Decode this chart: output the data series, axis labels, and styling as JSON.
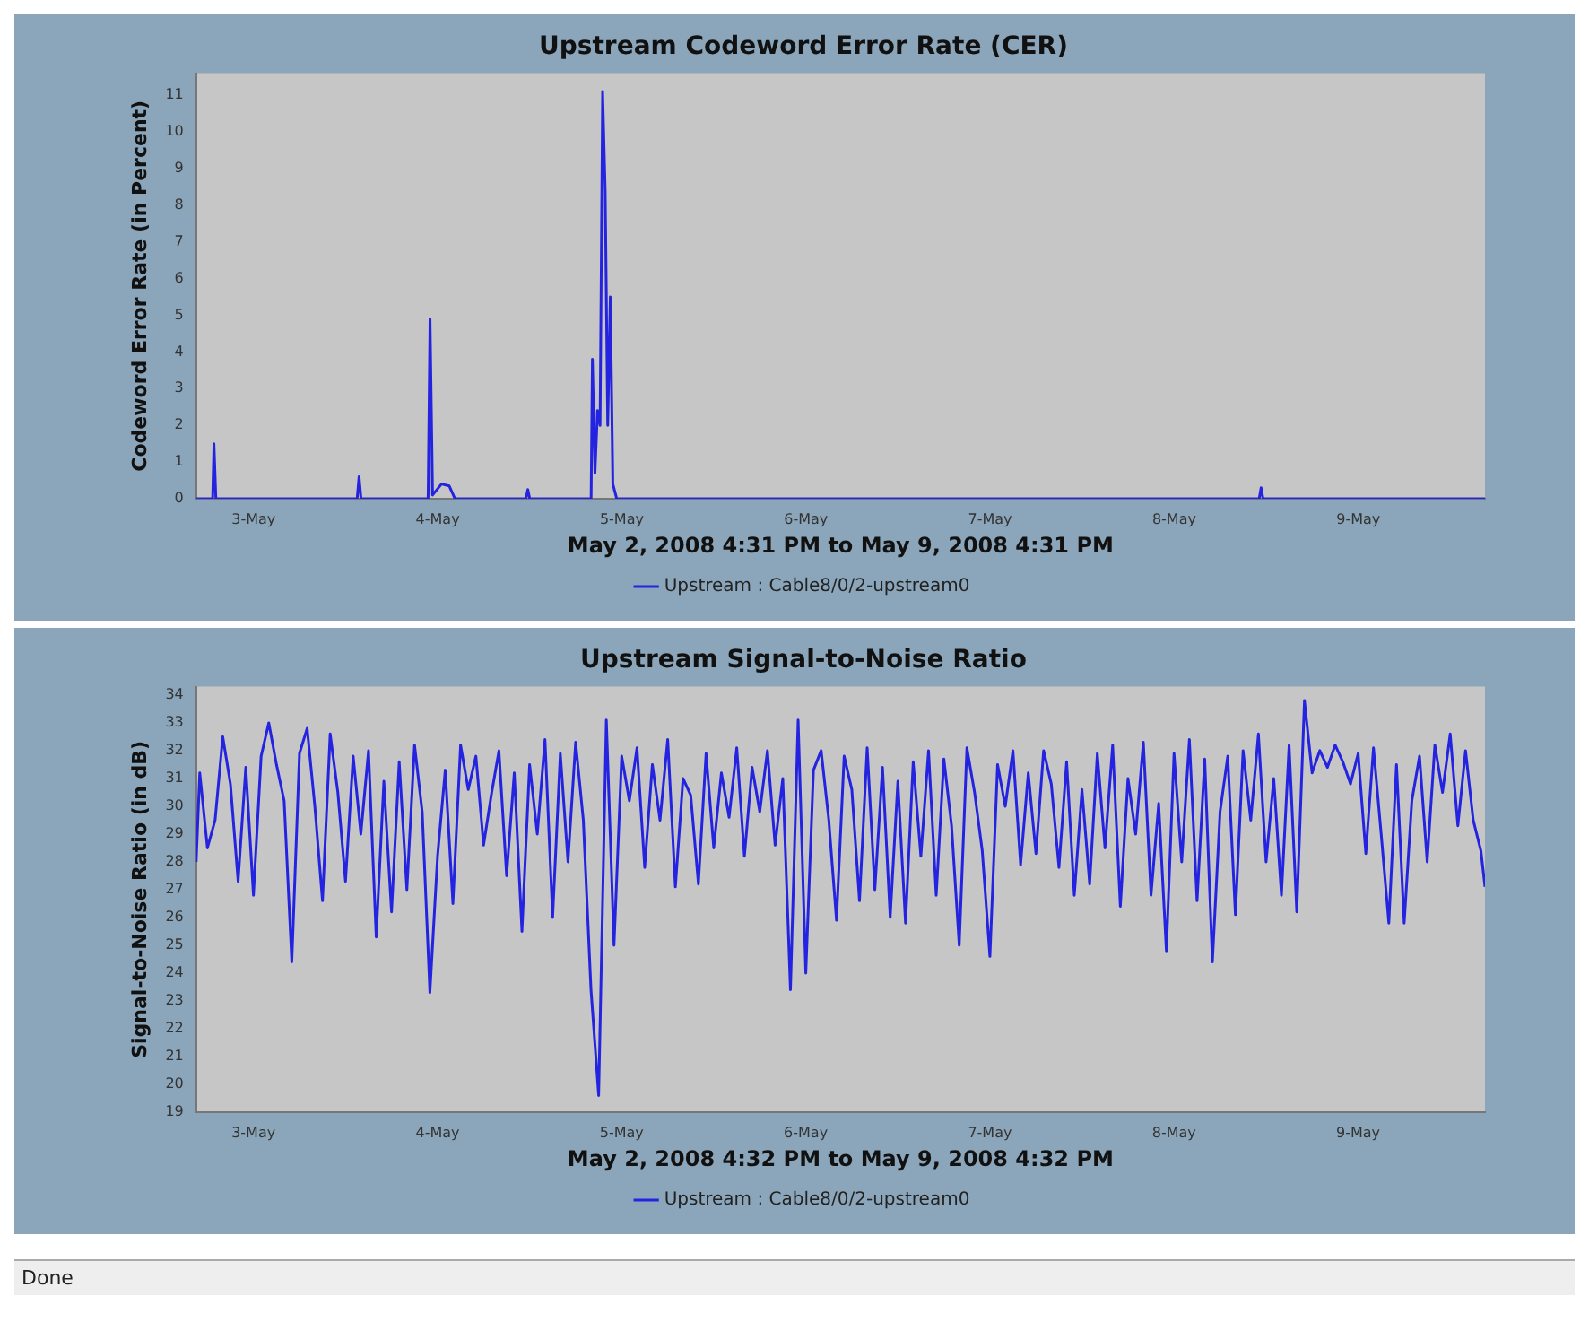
{
  "chart_data": [
    {
      "type": "line",
      "title": "Upstream Codeword Error Rate (CER)",
      "xlabel": "May 2, 2008 4:31 PM to May 9, 2008 4:31 PM",
      "ylabel": "Codeword Error Rate (in Percent)",
      "legend": "bottom",
      "grid": false,
      "xlim": [
        "2008-05-02T16:31",
        "2008-05-09T16:31"
      ],
      "xticks": [
        {
          "value": "2008-05-03",
          "label": "3-May"
        },
        {
          "value": "2008-05-04",
          "label": "4-May"
        },
        {
          "value": "2008-05-05",
          "label": "5-May"
        },
        {
          "value": "2008-05-06",
          "label": "6-May"
        },
        {
          "value": "2008-05-07",
          "label": "7-May"
        },
        {
          "value": "2008-05-08",
          "label": "8-May"
        },
        {
          "value": "2008-05-09",
          "label": "9-May"
        }
      ],
      "ylim": [
        0,
        11.6
      ],
      "yticks": [
        0,
        1,
        2,
        3,
        4,
        5,
        6,
        7,
        8,
        9,
        10,
        11
      ],
      "x": [
        "2008-05-02T16:31",
        "2008-05-02T18:40",
        "2008-05-02T18:50",
        "2008-05-02T19:05",
        "2008-05-03T13:30",
        "2008-05-03T13:45",
        "2008-05-03T14:00",
        "2008-05-03T22:45",
        "2008-05-03T23:00",
        "2008-05-03T23:20",
        "2008-05-04T00:30",
        "2008-05-04T01:30",
        "2008-05-04T02:15",
        "2008-05-04T11:30",
        "2008-05-04T11:45",
        "2008-05-04T12:00",
        "2008-05-04T20:00",
        "2008-05-04T20:10",
        "2008-05-04T20:30",
        "2008-05-04T20:50",
        "2008-05-04T21:10",
        "2008-05-04T21:30",
        "2008-05-04T21:50",
        "2008-05-04T22:10",
        "2008-05-04T22:30",
        "2008-05-04T22:50",
        "2008-05-04T23:20",
        "2008-05-08T11:05",
        "2008-05-08T11:20",
        "2008-05-08T11:35",
        "2008-05-09T16:31"
      ],
      "series": [
        {
          "name": "Upstream : Cable8/0/2-upstream0",
          "color": "#2424e0",
          "values": [
            0,
            0,
            1.5,
            0,
            0,
            0.6,
            0,
            0,
            4.9,
            0.1,
            0.4,
            0.35,
            0,
            0,
            0.25,
            0,
            0,
            3.8,
            0.7,
            2.4,
            2.0,
            11.1,
            8.4,
            2.0,
            5.5,
            0.4,
            0,
            0,
            0.3,
            0,
            0
          ]
        }
      ]
    },
    {
      "type": "line",
      "title": "Upstream Signal-to-Noise Ratio",
      "xlabel": "May 2, 2008 4:32 PM to May 9, 2008 4:32 PM",
      "ylabel": "Signal-to-Noise Ratio (in dB)",
      "legend": "bottom",
      "grid": false,
      "annotations": [
        "Done"
      ],
      "xlim": [
        "2008-05-02T16:32",
        "2008-05-09T16:32"
      ],
      "xticks": [
        {
          "value": "2008-05-03",
          "label": "3-May"
        },
        {
          "value": "2008-05-04",
          "label": "4-May"
        },
        {
          "value": "2008-05-05",
          "label": "5-May"
        },
        {
          "value": "2008-05-06",
          "label": "6-May"
        },
        {
          "value": "2008-05-07",
          "label": "7-May"
        },
        {
          "value": "2008-05-08",
          "label": "8-May"
        },
        {
          "value": "2008-05-09",
          "label": "9-May"
        }
      ],
      "ylim": [
        19,
        34.3
      ],
      "yticks": [
        19,
        20,
        21,
        22,
        23,
        24,
        25,
        26,
        27,
        28,
        29,
        30,
        31,
        32,
        33,
        34
      ],
      "x": [
        "2008-05-02T16:32",
        "2008-05-02T17:00",
        "2008-05-02T18:00",
        "2008-05-02T19:00",
        "2008-05-02T20:00",
        "2008-05-02T21:00",
        "2008-05-02T22:00",
        "2008-05-02T23:00",
        "2008-05-03T00:00",
        "2008-05-03T01:00",
        "2008-05-03T02:00",
        "2008-05-03T03:00",
        "2008-05-03T04:00",
        "2008-05-03T05:00",
        "2008-05-03T06:00",
        "2008-05-03T07:00",
        "2008-05-03T08:00",
        "2008-05-03T09:00",
        "2008-05-03T10:00",
        "2008-05-03T11:00",
        "2008-05-03T12:00",
        "2008-05-03T13:00",
        "2008-05-03T14:00",
        "2008-05-03T15:00",
        "2008-05-03T16:00",
        "2008-05-03T17:00",
        "2008-05-03T18:00",
        "2008-05-03T19:00",
        "2008-05-03T20:00",
        "2008-05-03T21:00",
        "2008-05-03T22:00",
        "2008-05-03T23:00",
        "2008-05-04T00:00",
        "2008-05-04T01:00",
        "2008-05-04T02:00",
        "2008-05-04T03:00",
        "2008-05-04T04:00",
        "2008-05-04T05:00",
        "2008-05-04T06:00",
        "2008-05-04T07:00",
        "2008-05-04T08:00",
        "2008-05-04T09:00",
        "2008-05-04T10:00",
        "2008-05-04T11:00",
        "2008-05-04T12:00",
        "2008-05-04T13:00",
        "2008-05-04T14:00",
        "2008-05-04T15:00",
        "2008-05-04T16:00",
        "2008-05-04T17:00",
        "2008-05-04T18:00",
        "2008-05-04T19:00",
        "2008-05-04T20:00",
        "2008-05-04T21:00",
        "2008-05-04T22:00",
        "2008-05-04T23:00",
        "2008-05-05T00:00",
        "2008-05-05T01:00",
        "2008-05-05T02:00",
        "2008-05-05T03:00",
        "2008-05-05T04:00",
        "2008-05-05T05:00",
        "2008-05-05T06:00",
        "2008-05-05T07:00",
        "2008-05-05T08:00",
        "2008-05-05T09:00",
        "2008-05-05T10:00",
        "2008-05-05T11:00",
        "2008-05-05T12:00",
        "2008-05-05T13:00",
        "2008-05-05T14:00",
        "2008-05-05T15:00",
        "2008-05-05T16:00",
        "2008-05-05T17:00",
        "2008-05-05T18:00",
        "2008-05-05T19:00",
        "2008-05-05T20:00",
        "2008-05-05T21:00",
        "2008-05-05T22:00",
        "2008-05-05T23:00",
        "2008-05-06T00:00",
        "2008-05-06T01:00",
        "2008-05-06T02:00",
        "2008-05-06T03:00",
        "2008-05-06T04:00",
        "2008-05-06T05:00",
        "2008-05-06T06:00",
        "2008-05-06T07:00",
        "2008-05-06T08:00",
        "2008-05-06T09:00",
        "2008-05-06T10:00",
        "2008-05-06T11:00",
        "2008-05-06T12:00",
        "2008-05-06T13:00",
        "2008-05-06T14:00",
        "2008-05-06T15:00",
        "2008-05-06T16:00",
        "2008-05-06T17:00",
        "2008-05-06T18:00",
        "2008-05-06T19:00",
        "2008-05-06T20:00",
        "2008-05-06T21:00",
        "2008-05-06T22:00",
        "2008-05-06T23:00",
        "2008-05-07T00:00",
        "2008-05-07T01:00",
        "2008-05-07T02:00",
        "2008-05-07T03:00",
        "2008-05-07T04:00",
        "2008-05-07T05:00",
        "2008-05-07T06:00",
        "2008-05-07T07:00",
        "2008-05-07T08:00",
        "2008-05-07T09:00",
        "2008-05-07T10:00",
        "2008-05-07T11:00",
        "2008-05-07T12:00",
        "2008-05-07T13:00",
        "2008-05-07T14:00",
        "2008-05-07T15:00",
        "2008-05-07T16:00",
        "2008-05-07T17:00",
        "2008-05-07T18:00",
        "2008-05-07T19:00",
        "2008-05-07T20:00",
        "2008-05-07T21:00",
        "2008-05-07T22:00",
        "2008-05-07T23:00",
        "2008-05-08T00:00",
        "2008-05-08T01:00",
        "2008-05-08T02:00",
        "2008-05-08T03:00",
        "2008-05-08T04:00",
        "2008-05-08T05:00",
        "2008-05-08T06:00",
        "2008-05-08T07:00",
        "2008-05-08T08:00",
        "2008-05-08T09:00",
        "2008-05-08T10:00",
        "2008-05-08T11:00",
        "2008-05-08T12:00",
        "2008-05-08T13:00",
        "2008-05-08T14:00",
        "2008-05-08T15:00",
        "2008-05-08T16:00",
        "2008-05-08T17:00",
        "2008-05-08T18:00",
        "2008-05-08T19:00",
        "2008-05-08T20:00",
        "2008-05-08T21:00",
        "2008-05-08T22:00",
        "2008-05-08T23:00",
        "2008-05-09T00:00",
        "2008-05-09T01:00",
        "2008-05-09T02:00",
        "2008-05-09T03:00",
        "2008-05-09T04:00",
        "2008-05-09T05:00",
        "2008-05-09T06:00",
        "2008-05-09T07:00",
        "2008-05-09T08:00",
        "2008-05-09T09:00",
        "2008-05-09T10:00",
        "2008-05-09T11:00",
        "2008-05-09T12:00",
        "2008-05-09T13:00",
        "2008-05-09T14:00",
        "2008-05-09T15:00",
        "2008-05-09T16:00",
        "2008-05-09T16:32"
      ],
      "series": [
        {
          "name": "Upstream : Cable8/0/2-upstream0",
          "color": "#2424e0",
          "values": [
            28.0,
            31.2,
            28.5,
            29.5,
            32.5,
            30.8,
            27.3,
            31.4,
            26.8,
            31.8,
            33.0,
            31.5,
            30.2,
            24.4,
            31.9,
            32.8,
            30.0,
            26.6,
            32.6,
            30.5,
            27.3,
            31.8,
            29.0,
            32.0,
            25.3,
            30.9,
            26.2,
            31.6,
            27.0,
            32.2,
            29.8,
            23.3,
            28.2,
            31.3,
            26.5,
            32.2,
            30.6,
            31.8,
            28.6,
            30.4,
            32.0,
            27.5,
            31.2,
            25.5,
            31.5,
            29.0,
            32.4,
            26.0,
            31.9,
            28.0,
            32.3,
            29.5,
            23.4,
            19.6,
            33.1,
            25.0,
            31.8,
            30.2,
            32.1,
            27.8,
            31.5,
            29.5,
            32.4,
            27.1,
            31.0,
            30.4,
            27.2,
            31.9,
            28.5,
            31.2,
            29.6,
            32.1,
            28.2,
            31.4,
            29.8,
            32.0,
            28.6,
            31.0,
            23.4,
            33.1,
            24.0,
            31.3,
            32.0,
            29.5,
            25.9,
            31.8,
            30.6,
            26.6,
            32.1,
            27.0,
            31.4,
            26.0,
            30.9,
            25.8,
            31.6,
            28.2,
            32.0,
            26.8,
            31.7,
            29.3,
            25.0,
            32.1,
            30.5,
            28.4,
            24.6,
            31.5,
            30.0,
            32.0,
            27.9,
            31.2,
            28.3,
            32.0,
            30.8,
            27.8,
            31.6,
            26.8,
            30.6,
            27.2,
            31.9,
            28.5,
            32.2,
            26.4,
            31.0,
            29.0,
            32.3,
            26.8,
            30.1,
            24.8,
            31.9,
            28.0,
            32.4,
            26.6,
            31.7,
            24.4,
            29.8,
            31.8,
            26.1,
            32.0,
            29.5,
            32.6,
            28.0,
            31.0,
            26.8,
            32.2,
            26.2,
            33.8,
            31.2,
            32.0,
            31.4,
            32.2,
            31.6,
            30.8,
            31.9,
            28.3,
            32.1,
            29.0,
            25.8,
            31.5,
            25.8,
            30.2,
            31.8,
            28.0,
            32.2,
            30.5,
            32.6,
            29.3,
            32.0,
            29.5,
            28.4,
            27.1
          ]
        }
      ]
    }
  ]
}
